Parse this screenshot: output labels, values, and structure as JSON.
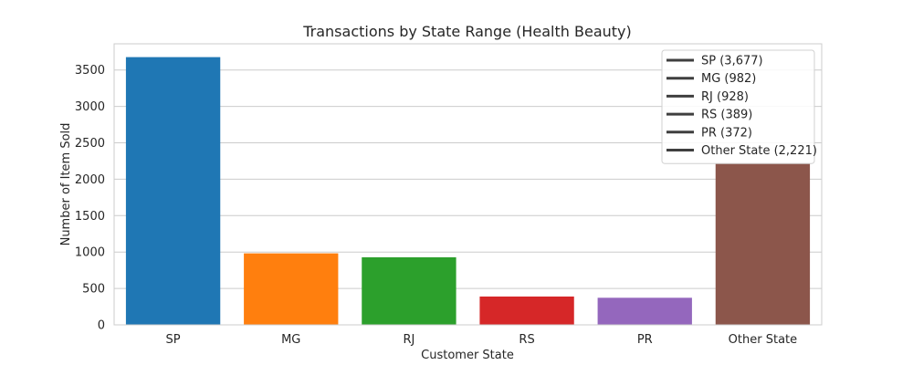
{
  "chart_data": {
    "type": "bar",
    "title": "Transactions by State Range (Health Beauty)",
    "xlabel": "Customer State",
    "ylabel": "Number of Item Sold",
    "categories": [
      "SP",
      "MG",
      "RJ",
      "RS",
      "PR",
      "Other State"
    ],
    "values": [
      3677,
      982,
      928,
      389,
      372,
      2221
    ],
    "colors": [
      "#1f77b4",
      "#ff7f0e",
      "#2ca02c",
      "#d62728",
      "#9467bd",
      "#8c564b"
    ],
    "ylim": [
      0,
      3860
    ],
    "yticks": [
      0,
      500,
      1000,
      1500,
      2000,
      2500,
      3000,
      3500
    ],
    "grid": "horizontal",
    "legend": {
      "placement": "top-right",
      "entries": [
        "SP (3,677)",
        "MG (982)",
        "RJ (928)",
        "RS (389)",
        "PR (372)",
        "Other State (2,221)"
      ],
      "line_color": "#3f3f3f"
    }
  }
}
